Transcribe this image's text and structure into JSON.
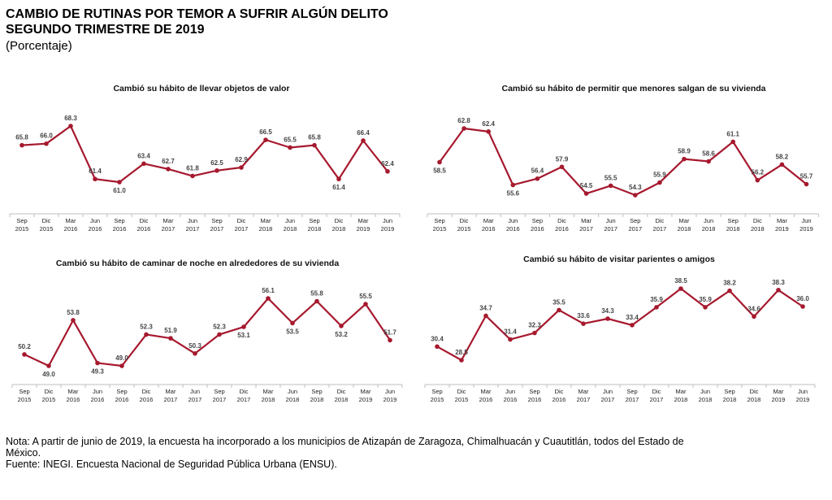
{
  "title_line1": "CAMBIO DE RUTINAS POR TEMOR A SUFRIR ALGÚN DELITO",
  "title_line2": "SEGUNDO TRIMESTRE DE 2019",
  "subtitle": "(Porcentaje)",
  "note_line1": "Nota: A partir de junio de 2019, la encuesta ha incorporado a los municipios de Atizapán de Zaragoza, Chimalhuacán y Cuautitlán, todos del Estado de",
  "note_line2": "México.",
  "source": "Fuente: INEGI. Encuesta Nacional de Seguridad Pública Urbana (ENSU).",
  "line_color": "#a6192e",
  "chart_data": [
    {
      "type": "line",
      "title": "Cambió su hábito de llevar objetos de valor",
      "categories": [
        [
          "Sep",
          "2015"
        ],
        [
          "Dic",
          "2015"
        ],
        [
          "Mar",
          "2016"
        ],
        [
          "Jun",
          "2016"
        ],
        [
          "Sep",
          "2016"
        ],
        [
          "Dic",
          "2016"
        ],
        [
          "Mar",
          "2017"
        ],
        [
          "Jun",
          "2017"
        ],
        [
          "Sep",
          "2017"
        ],
        [
          "Dic",
          "2017"
        ],
        [
          "Mar",
          "2018"
        ],
        [
          "Jun",
          "2018"
        ],
        [
          "Sep",
          "2018"
        ],
        [
          "Dic",
          "2018"
        ],
        [
          "Mar",
          "2019"
        ],
        [
          "Jun",
          "2019"
        ]
      ],
      "values": [
        65.8,
        66.0,
        68.3,
        61.4,
        61.0,
        63.4,
        62.7,
        61.8,
        62.5,
        62.9,
        66.5,
        65.5,
        65.8,
        61.4,
        66.4,
        62.4
      ],
      "labels": [
        "65.8",
        "66.0",
        "68.3",
        "61.4",
        "61.0",
        "63.4",
        "62.7",
        "61.8",
        "62.5",
        "62.9",
        "66.5",
        "65.5",
        "65.8",
        "61.4",
        "66.4",
        "62.4"
      ],
      "label_pos": [
        "above",
        "above",
        "above",
        "above",
        "below",
        "above",
        "above",
        "above",
        "above",
        "above",
        "above",
        "above",
        "above",
        "below",
        "above",
        "above"
      ]
    },
    {
      "type": "line",
      "title": "Cambió su hábito de permitir que menores salgan de su vivienda",
      "categories": [
        [
          "Sep",
          "2015"
        ],
        [
          "Dic",
          "2015"
        ],
        [
          "Mar",
          "2016"
        ],
        [
          "Jun",
          "2016"
        ],
        [
          "Sep",
          "2016"
        ],
        [
          "Dic",
          "2016"
        ],
        [
          "Mar",
          "2017"
        ],
        [
          "Jun",
          "2017"
        ],
        [
          "Sep",
          "2017"
        ],
        [
          "Dic",
          "2017"
        ],
        [
          "Mar",
          "2018"
        ],
        [
          "Jun",
          "2018"
        ],
        [
          "Sep",
          "2018"
        ],
        [
          "Dic",
          "2018"
        ],
        [
          "Mar",
          "2019"
        ],
        [
          "Jun",
          "2019"
        ]
      ],
      "values": [
        58.5,
        62.8,
        62.4,
        55.6,
        56.4,
        57.9,
        54.5,
        55.5,
        54.3,
        55.9,
        58.9,
        58.6,
        61.1,
        56.2,
        58.2,
        55.7
      ],
      "labels": [
        "58.5",
        "62.8",
        "62.4",
        "55.6",
        "56.4",
        "57.9",
        "54.5",
        "55.5",
        "54.3",
        "55.9",
        "58.9",
        "58.6",
        "61.1",
        "56.2",
        "58.2",
        "55.7"
      ],
      "label_pos": [
        "below",
        "above",
        "above",
        "below",
        "above",
        "above",
        "above",
        "above",
        "above",
        "above",
        "above",
        "above",
        "above",
        "above",
        "above",
        "above"
      ]
    },
    {
      "type": "line",
      "title": "Cambió su hábito de caminar de noche en alrededores de su vivienda",
      "categories": [
        [
          "Sep",
          "2015"
        ],
        [
          "Dic",
          "2015"
        ],
        [
          "Mar",
          "2016"
        ],
        [
          "Jun",
          "2016"
        ],
        [
          "Sep",
          "2016"
        ],
        [
          "Dic",
          "2016"
        ],
        [
          "Mar",
          "2017"
        ],
        [
          "Jun",
          "2017"
        ],
        [
          "Sep",
          "2017"
        ],
        [
          "Dic",
          "2017"
        ],
        [
          "Mar",
          "2018"
        ],
        [
          "Jun",
          "2018"
        ],
        [
          "Sep",
          "2018"
        ],
        [
          "Dic",
          "2018"
        ],
        [
          "Mar",
          "2019"
        ],
        [
          "Jun",
          "2019"
        ]
      ],
      "values": [
        50.2,
        49.0,
        53.8,
        49.3,
        49.0,
        52.3,
        51.9,
        50.3,
        52.3,
        53.1,
        56.1,
        53.5,
        55.8,
        53.2,
        55.5,
        51.7
      ],
      "labels": [
        "50.2",
        "49.0",
        "53.8",
        "49.3",
        "49.0",
        "52.3",
        "51.9",
        "50.3",
        "52.3",
        "53.1",
        "56.1",
        "53.5",
        "55.8",
        "53.2",
        "55.5",
        "51.7"
      ],
      "label_pos": [
        "above",
        "below",
        "above",
        "below",
        "above",
        "above",
        "above",
        "above",
        "above",
        "below",
        "above",
        "below",
        "above",
        "below",
        "above",
        "above"
      ]
    },
    {
      "type": "line",
      "title": "Cambió su hábito de visitar parientes o amigos",
      "categories": [
        [
          "Sep",
          "2015"
        ],
        [
          "Dic",
          "2015"
        ],
        [
          "Mar",
          "2016"
        ],
        [
          "Jun",
          "2016"
        ],
        [
          "Sep",
          "2016"
        ],
        [
          "Dic",
          "2016"
        ],
        [
          "Mar",
          "2017"
        ],
        [
          "Jun",
          "2017"
        ],
        [
          "Sep",
          "2017"
        ],
        [
          "Dic",
          "2017"
        ],
        [
          "Mar",
          "2018"
        ],
        [
          "Jun",
          "2018"
        ],
        [
          "Sep",
          "2018"
        ],
        [
          "Dic",
          "2018"
        ],
        [
          "Mar",
          "2019"
        ],
        [
          "Jun",
          "2019"
        ]
      ],
      "values": [
        30.4,
        28.5,
        34.7,
        31.4,
        32.3,
        35.5,
        33.6,
        34.3,
        33.4,
        35.9,
        38.5,
        35.9,
        38.2,
        34.6,
        38.3,
        36.0
      ],
      "labels": [
        "30.4",
        "28.5",
        "34.7",
        "31.4",
        "32.3",
        "35.5",
        "33.6",
        "34.3",
        "33.4",
        "35.9",
        "38.5",
        "35.9",
        "38.2",
        "34.6",
        "38.3",
        "36.0"
      ],
      "label_pos": [
        "above",
        "above",
        "above",
        "above",
        "above",
        "above",
        "above",
        "above",
        "above",
        "above",
        "above",
        "above",
        "above",
        "above",
        "above",
        "above"
      ]
    }
  ]
}
